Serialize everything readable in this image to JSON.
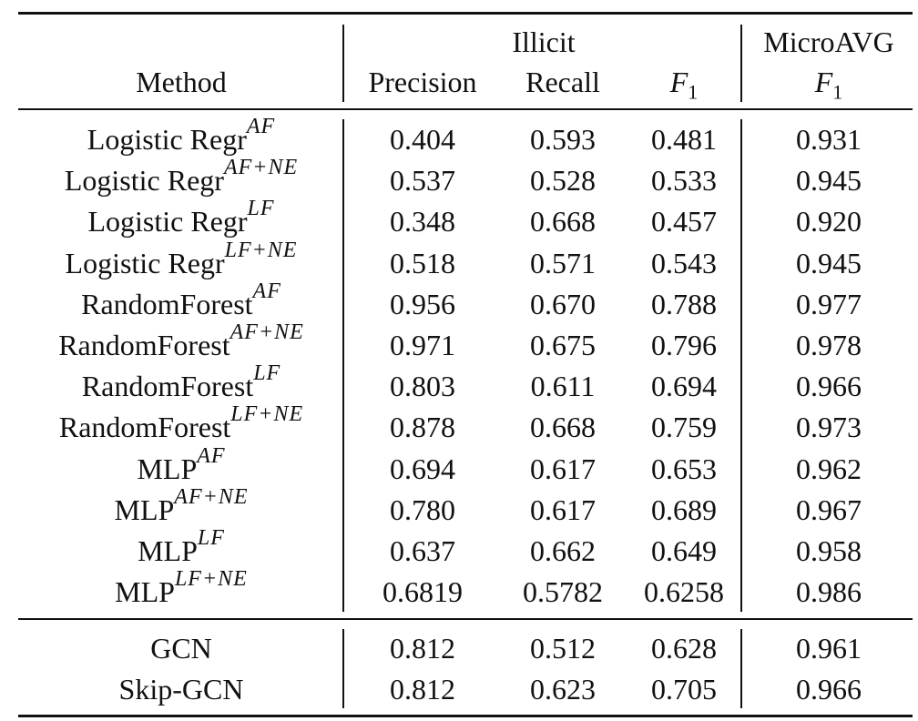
{
  "header": {
    "method": "Method",
    "illicit": "Illicit",
    "precision": "Precision",
    "recall": "Recall",
    "f1_base": "F",
    "f1_sub": "1",
    "microavg": "MicroAVG"
  },
  "group1": [
    {
      "base": "Logistic Regr",
      "sup": "AF",
      "precision": "0.404",
      "recall": "0.593",
      "f1": "0.481",
      "micro_f1": "0.931"
    },
    {
      "base": "Logistic Regr",
      "sup": "AF+NE",
      "precision": "0.537",
      "recall": "0.528",
      "f1": "0.533",
      "micro_f1": "0.945"
    },
    {
      "base": "Logistic Regr",
      "sup": "LF",
      "precision": "0.348",
      "recall": "0.668",
      "f1": "0.457",
      "micro_f1": "0.920"
    },
    {
      "base": "Logistic Regr",
      "sup": "LF+NE",
      "precision": "0.518",
      "recall": "0.571",
      "f1": "0.543",
      "micro_f1": "0.945"
    },
    {
      "base": "RandomForest",
      "sup": "AF",
      "precision": "0.956",
      "recall": "0.670",
      "f1": "0.788",
      "micro_f1": "0.977"
    },
    {
      "base": "RandomForest",
      "sup": "AF+NE",
      "precision": "0.971",
      "recall": "0.675",
      "f1": "0.796",
      "micro_f1": "0.978"
    },
    {
      "base": "RandomForest",
      "sup": "LF",
      "precision": "0.803",
      "recall": "0.611",
      "f1": "0.694",
      "micro_f1": "0.966"
    },
    {
      "base": "RandomForest",
      "sup": "LF+NE",
      "precision": "0.878",
      "recall": "0.668",
      "f1": "0.759",
      "micro_f1": "0.973"
    },
    {
      "base": "MLP",
      "sup": "AF",
      "precision": "0.694",
      "recall": "0.617",
      "f1": "0.653",
      "micro_f1": "0.962"
    },
    {
      "base": "MLP",
      "sup": "AF+NE",
      "precision": "0.780",
      "recall": "0.617",
      "f1": "0.689",
      "micro_f1": "0.967"
    },
    {
      "base": "MLP",
      "sup": "LF",
      "precision": "0.637",
      "recall": "0.662",
      "f1": "0.649",
      "micro_f1": "0.958"
    },
    {
      "base": "MLP",
      "sup": "LF+NE",
      "precision": "0.6819",
      "recall": "0.5782",
      "f1": "0.6258",
      "micro_f1": "0.986"
    }
  ],
  "group2": [
    {
      "base": "GCN",
      "sup": "",
      "precision": "0.812",
      "recall": "0.512",
      "f1": "0.628",
      "micro_f1": "0.961"
    },
    {
      "base": "Skip-GCN",
      "sup": "",
      "precision": "0.812",
      "recall": "0.623",
      "f1": "0.705",
      "micro_f1": "0.966"
    }
  ]
}
